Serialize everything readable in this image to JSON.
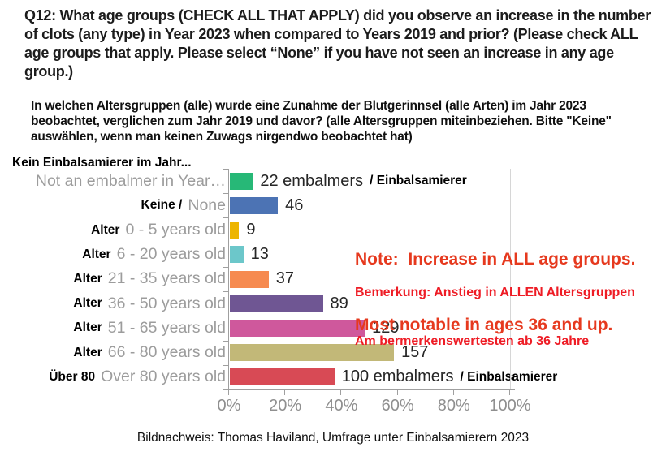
{
  "title": "Q12: What age groups (CHECK ALL THAT APPLY) did you observe an increase in the number of clots (any type) in Year 2023 when compared to Years 2019 and prior? (Please check ALL age groups that apply. Please select “None” if you have not seen an increase in any age group.)",
  "subtitle_de": "In welchen Altersgruppen (alle) wurde eine Zunahme der Blutgerinnsel (alle Arten) im Jahr 2023 beobachtet, verglichen zum Jahr 2019 und davor? (alle Altersgruppen miteinbeziehen. Bitte \"Keine\" auswählen, wenn man keinen Zuwags nirgendwo beobachtet hat)",
  "first_category_label_de": "Kein Einbalsamierer im Jahr...",
  "note": {
    "en_line1": "Note:  Increase in ALL age groups.",
    "en_line2": "Most notable in ages 36 and up.",
    "de_line1": "Bemerkung: Anstieg in ALLEN Altersgruppen",
    "de_line2": "Am bermerkenswertesten ab 36 Jahre",
    "en_color": "#e6391e",
    "de_color": "#ee1c25"
  },
  "caption": "Bildnachweis: Thomas Haviland, Umfrage unter Einbalsamierern 2023",
  "chart_data": {
    "type": "bar",
    "orientation": "horizontal",
    "xlim": [
      0,
      100
    ],
    "x_tick_labels": [
      "0%",
      "20%",
      "40%",
      "60%",
      "80%",
      "100%"
    ],
    "grid": false,
    "rows": [
      {
        "label_de": "",
        "label_en": "Not an embalmer in Year…",
        "value": 22,
        "value_label": "22 embalmers",
        "suffix": "/ Einbalsamierer",
        "percent": 8.2,
        "color": "#27b877"
      },
      {
        "label_de": "Keine /",
        "label_en": "None",
        "value": 46,
        "value_label": "46",
        "suffix": "",
        "percent": 17.1,
        "color": "#4c73b4"
      },
      {
        "label_de": "Alter",
        "label_en": "0 - 5 years old",
        "value": 9,
        "value_label": "9",
        "suffix": "",
        "percent": 3.3,
        "color": "#edb500"
      },
      {
        "label_de": "Alter",
        "label_en": "6 - 20 years old",
        "value": 13,
        "value_label": "13",
        "suffix": "",
        "percent": 4.8,
        "color": "#6cc7ca"
      },
      {
        "label_de": "Alter",
        "label_en": "21 - 35 years old",
        "value": 37,
        "value_label": "37",
        "suffix": "",
        "percent": 13.8,
        "color": "#f68a50"
      },
      {
        "label_de": "Alter",
        "label_en": "36 - 50 years old",
        "value": 89,
        "value_label": "89",
        "suffix": "",
        "percent": 33.1,
        "color": "#6f5693"
      },
      {
        "label_de": "Alter",
        "label_en": "51 - 65 years old",
        "value": 129,
        "value_label": "129",
        "suffix": "",
        "percent": 48.0,
        "color": "#cf589c"
      },
      {
        "label_de": "Alter",
        "label_en": "66 - 80 years old",
        "value": 157,
        "value_label": "157",
        "suffix": "",
        "percent": 58.4,
        "color": "#c2b878"
      },
      {
        "label_de": "Über 80",
        "label_en": "Over 80 years old",
        "value": 100,
        "value_label": "100 embalmers",
        "suffix": "/ Einbalsamierer",
        "percent": 37.2,
        "color": "#d84a55"
      }
    ]
  }
}
